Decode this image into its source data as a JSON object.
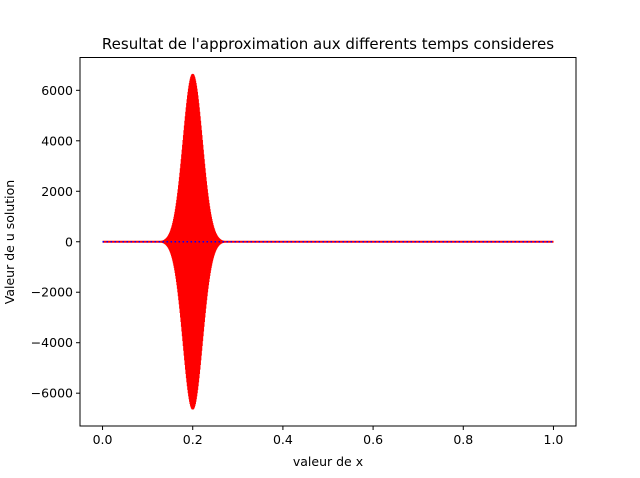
{
  "chart_data": {
    "type": "line",
    "title": "Resultat de l'approximation aux differents temps consideres",
    "xlabel": "valeur de x",
    "ylabel": "Valeur de u solution",
    "xlim": [
      -0.05,
      1.05
    ],
    "ylim": [
      -7300,
      7300
    ],
    "xticks": [
      0.0,
      0.2,
      0.4,
      0.6,
      0.8,
      1.0
    ],
    "xtick_labels": [
      "0.0",
      "0.2",
      "0.4",
      "0.6",
      "0.8",
      "1.0"
    ],
    "yticks": [
      -6000,
      -4000,
      -2000,
      0,
      2000,
      4000,
      6000
    ],
    "ytick_labels": [
      "−6000",
      "−4000",
      "−2000",
      "0",
      "2000",
      "4000",
      "6000"
    ],
    "grid": false,
    "series": [
      {
        "color": "#ff0000",
        "style": "solid",
        "x_range": [
          0.0,
          1.0
        ],
        "envelope": {
          "center": 0.2,
          "peak_amplitude": 6650,
          "support": [
            0.13,
            0.27
          ]
        }
      },
      {
        "color": "#0000ff",
        "style": "dotted",
        "x_range": [
          0.0,
          1.0
        ],
        "constant_value": 0
      }
    ]
  }
}
